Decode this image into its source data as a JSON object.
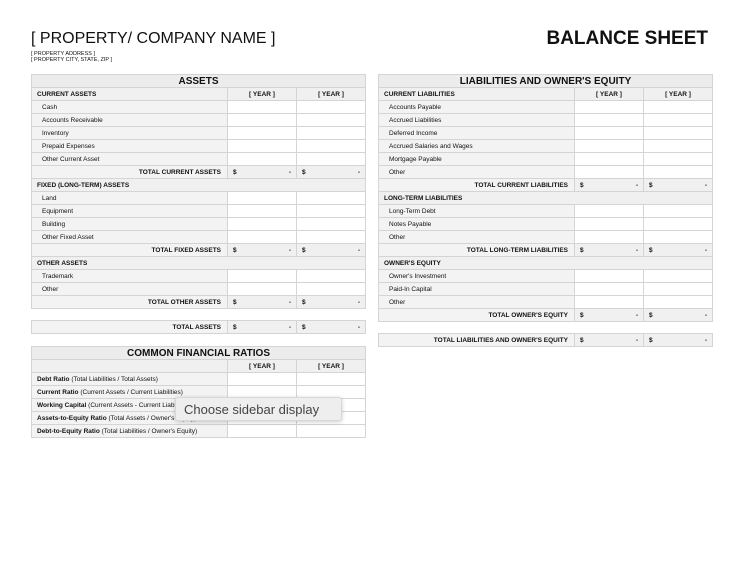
{
  "header": {
    "company": "[ PROPERTY/ COMPANY NAME ]",
    "address": "[ PROPERTY ADDRESS ]",
    "city": "[ PROPERTY CITY, STATE, ZIP ]",
    "doc_title": "BALANCE SHEET"
  },
  "year_label": "[ YEAR ]",
  "currency": "$",
  "empty": "-",
  "assets": {
    "title": "ASSETS",
    "rows": [
      {
        "t": "sect",
        "label": "CURRENT ASSETS",
        "years": true
      },
      {
        "t": "item",
        "label": "Cash"
      },
      {
        "t": "item",
        "label": "Accounts Receivable"
      },
      {
        "t": "item",
        "label": "Inventory"
      },
      {
        "t": "item",
        "label": "Prepaid Expenses"
      },
      {
        "t": "item",
        "label": "Other Current Asset"
      },
      {
        "t": "total",
        "label": "TOTAL CURRENT ASSETS"
      },
      {
        "t": "sect",
        "label": "FIXED (LONG-TERM) ASSETS"
      },
      {
        "t": "item",
        "label": "Land"
      },
      {
        "t": "item",
        "label": "Equipment"
      },
      {
        "t": "item",
        "label": "Building"
      },
      {
        "t": "item",
        "label": "Other Fixed Asset"
      },
      {
        "t": "total",
        "label": "TOTAL FIXED ASSETS"
      },
      {
        "t": "sect",
        "label": "OTHER ASSETS"
      },
      {
        "t": "item",
        "label": "Trademark"
      },
      {
        "t": "item",
        "label": "Other"
      },
      {
        "t": "total",
        "label": "TOTAL OTHER ASSETS"
      }
    ],
    "grand_total": "TOTAL ASSETS"
  },
  "liabilities": {
    "title": "LIABILITIES AND OWNER'S EQUITY",
    "rows": [
      {
        "t": "sect",
        "label": "CURRENT LIABILITIES",
        "years": true
      },
      {
        "t": "item",
        "label": "Accounts Payable"
      },
      {
        "t": "item",
        "label": "Accrued Liabilities"
      },
      {
        "t": "item",
        "label": "Deferred Income"
      },
      {
        "t": "item",
        "label": "Accrued Salaries and Wages"
      },
      {
        "t": "item",
        "label": "Mortgage Payable"
      },
      {
        "t": "item",
        "label": "Other"
      },
      {
        "t": "total",
        "label": "TOTAL CURRENT LIABILITIES"
      },
      {
        "t": "sect",
        "label": "LONG-TERM LIABILITIES"
      },
      {
        "t": "item",
        "label": "Long-Term Debt"
      },
      {
        "t": "item",
        "label": "Notes Payable"
      },
      {
        "t": "item",
        "label": "Other"
      },
      {
        "t": "total",
        "label": "TOTAL LONG-TERM LIABILITIES"
      },
      {
        "t": "sect",
        "label": "OWNER'S EQUITY"
      },
      {
        "t": "item",
        "label": "Owner's Investment"
      },
      {
        "t": "item",
        "label": "Paid-In Capital"
      },
      {
        "t": "item",
        "label": "Other"
      },
      {
        "t": "total",
        "label": "TOTAL OWNER'S EQUITY"
      }
    ],
    "grand_total": "TOTAL LIABILITIES AND OWNER'S EQUITY"
  },
  "ratios": {
    "title": "COMMON FINANCIAL RATIOS",
    "rows": [
      {
        "name": "Debt Ratio",
        "formula": "(Total Liabilities / Total Assets)"
      },
      {
        "name": "Current Ratio",
        "formula": "(Current Assets / Current Liabilities)"
      },
      {
        "name": "Working Capital",
        "formula": "(Current Assets - Current Liabilities)"
      },
      {
        "name": "Assets-to-Equity Ratio",
        "formula": "(Total Assets / Owner's Equity)"
      },
      {
        "name": "Debt-to-Equity Ratio",
        "formula": "(Total Liabilities / Owner's Equity)"
      }
    ]
  },
  "tooltip": "Choose sidebar display"
}
